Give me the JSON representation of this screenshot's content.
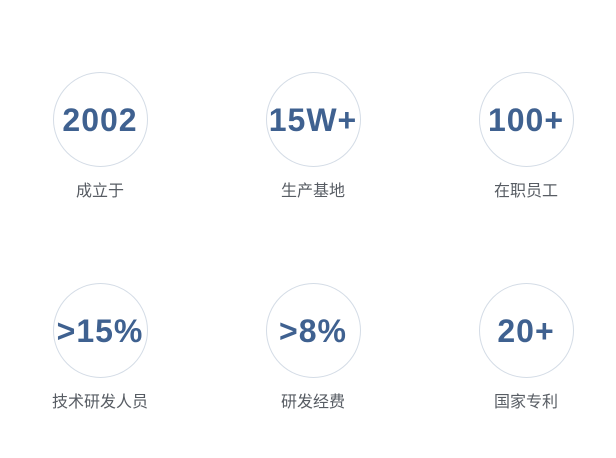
{
  "page": {
    "background_color": "#ffffff"
  },
  "stats": {
    "accent_color": "#3f6190",
    "label_color": "#575c63",
    "circle_border_color": "#d4dce6",
    "items": [
      {
        "value": "2002",
        "label": "成立于"
      },
      {
        "value": "15W+",
        "label": "生产基地"
      },
      {
        "value": "100+",
        "label": "在职员工"
      },
      {
        "value": ">15%",
        "label": "技术研发人员"
      },
      {
        "value": ">8%",
        "label": "研发经费"
      },
      {
        "value": "20+",
        "label": "国家专利"
      }
    ]
  }
}
